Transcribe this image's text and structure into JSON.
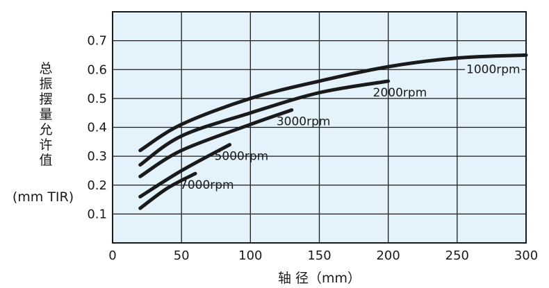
{
  "chart_data": {
    "type": "line",
    "xlabel": "轴 径（mm）",
    "ylabel_chars": [
      "总",
      "振",
      "摆",
      "量",
      "允",
      "许",
      "值"
    ],
    "ylabel_unit": "(mm TIR)",
    "xlim": [
      0,
      300
    ],
    "ylim": [
      0,
      0.8
    ],
    "x_ticks": [
      0,
      50,
      100,
      150,
      200,
      250,
      300
    ],
    "x_tick_labels": [
      "0",
      "50",
      "100",
      "150",
      "200",
      "250",
      "300"
    ],
    "y_ticks": [
      0.1,
      0.2,
      0.3,
      0.4,
      0.5,
      0.6,
      0.7
    ],
    "y_tick_labels": [
      "0.1",
      "0.2",
      "0.3",
      "0.4",
      "0.5",
      "0.6",
      "0.7"
    ],
    "grid": true,
    "plot_background": "#e3f2fb",
    "line_color": "#1a1a1a",
    "series": [
      {
        "name": "1000rpm",
        "x": [
          20,
          50,
          100,
          150,
          200,
          250,
          300
        ],
        "y": [
          0.32,
          0.41,
          0.5,
          0.56,
          0.61,
          0.64,
          0.65
        ]
      },
      {
        "name": "2000rpm",
        "x": [
          20,
          50,
          100,
          150,
          200
        ],
        "y": [
          0.27,
          0.37,
          0.45,
          0.52,
          0.56
        ]
      },
      {
        "name": "3000rpm",
        "x": [
          20,
          50,
          100,
          130
        ],
        "y": [
          0.23,
          0.32,
          0.41,
          0.46
        ]
      },
      {
        "name": "5000rpm",
        "x": [
          20,
          50,
          85
        ],
        "y": [
          0.16,
          0.25,
          0.34
        ]
      },
      {
        "name": "7000rpm",
        "x": [
          20,
          40,
          60
        ],
        "y": [
          0.12,
          0.19,
          0.24
        ]
      }
    ]
  }
}
